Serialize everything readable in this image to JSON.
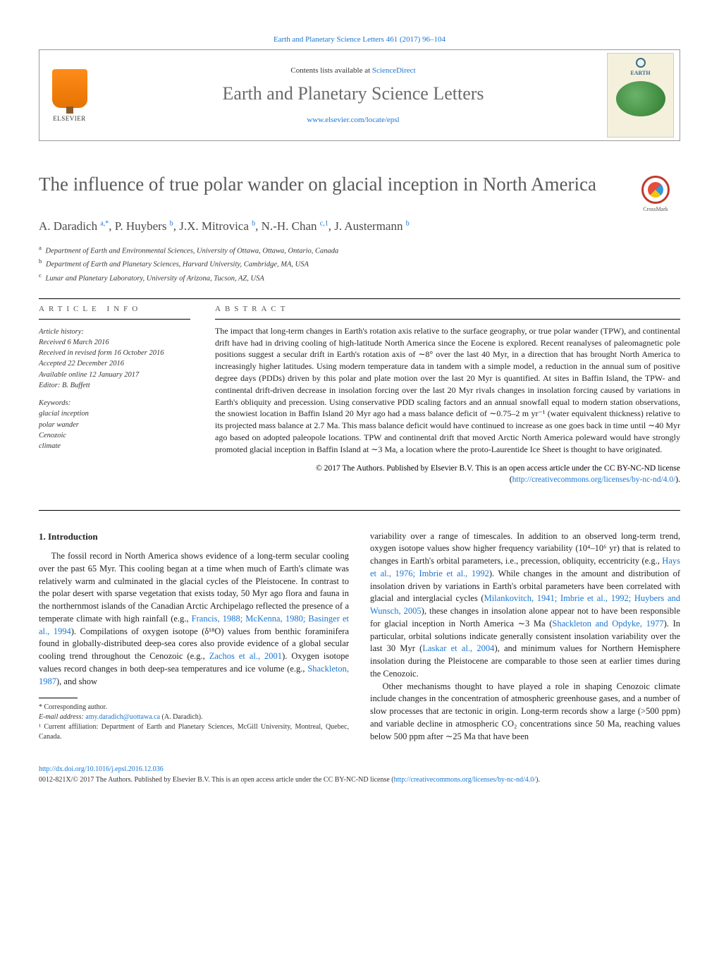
{
  "colors": {
    "link": "#1976d2",
    "title_gray": "#5a5a5a",
    "text": "#222222",
    "elsevier_orange": "#ff8c1a"
  },
  "top_link": "Earth and Planetary Science Letters 461 (2017) 96–104",
  "header": {
    "elsevier_label": "ELSEVIER",
    "contents_prefix": "Contents lists available at ",
    "contents_link": "ScienceDirect",
    "journal_name": "Earth and Planetary Science Letters",
    "journal_site": "www.elsevier.com/locate/epsl",
    "cover_title": "EARTH"
  },
  "crossmark": "CrossMark",
  "article": {
    "title": "The influence of true polar wander on glacial inception in North America",
    "authors_html": "A. Daradich <sup>a,*</sup>, P. Huybers <sup>b</sup>, J.X. Mitrovica <sup>b</sup>, N.-H. Chan <sup>c,1</sup>, J. Austermann <sup>b</sup>",
    "affiliations": [
      "a  Department of Earth and Environmental Sciences, University of Ottawa, Ottawa, Ontario, Canada",
      "b  Department of Earth and Planetary Sciences, Harvard University, Cambridge, MA, USA",
      "c  Lunar and Planetary Laboratory, University of Arizona, Tucson, AZ, USA"
    ]
  },
  "info": {
    "label": "article info",
    "history_heading": "Article history:",
    "history": [
      "Received 6 March 2016",
      "Received in revised form 16 October 2016",
      "Accepted 22 December 2016",
      "Available online 12 January 2017",
      "Editor: B. Buffett"
    ],
    "keywords_heading": "Keywords:",
    "keywords": [
      "glacial inception",
      "polar wander",
      "Cenozoic",
      "climate"
    ]
  },
  "abstract": {
    "label": "abstract",
    "text": "The impact that long-term changes in Earth's rotation axis relative to the surface geography, or true polar wander (TPW), and continental drift have had in driving cooling of high-latitude North America since the Eocene is explored. Recent reanalyses of paleomagnetic pole positions suggest a secular drift in Earth's rotation axis of ∼8° over the last 40 Myr, in a direction that has brought North America to increasingly higher latitudes. Using modern temperature data in tandem with a simple model, a reduction in the annual sum of positive degree days (PDDs) driven by this polar and plate motion over the last 20 Myr is quantified. At sites in Baffin Island, the TPW- and continental drift-driven decrease in insolation forcing over the last 20 Myr rivals changes in insolation forcing caused by variations in Earth's obliquity and precession. Using conservative PDD scaling factors and an annual snowfall equal to modern station observations, the snowiest location in Baffin Island 20 Myr ago had a mass balance deficit of ∼0.75–2 m yr⁻¹ (water equivalent thickness) relative to its projected mass balance at 2.7 Ma. This mass balance deficit would have continued to increase as one goes back in time until ∼40 Myr ago based on adopted paleopole locations. TPW and continental drift that moved Arctic North America poleward would have strongly promoted glacial inception in Baffin Island at ∼3 Ma, a location where the proto-Laurentide Ice Sheet is thought to have originated.",
    "copyright": "© 2017 The Authors. Published by Elsevier B.V. This is an open access article under the CC BY-NC-ND license (",
    "license_url": "http://creativecommons.org/licenses/by-nc-nd/4.0/",
    "copyright_close": ")."
  },
  "body": {
    "section_heading": "1. Introduction",
    "col1": "The fossil record in North America shows evidence of a long-term secular cooling over the past 65 Myr. This cooling began at a time when much of Earth's climate was relatively warm and culminated in the glacial cycles of the Pleistocene. In contrast to the polar desert with sparse vegetation that exists today, 50 Myr ago flora and fauna in the northernmost islands of the Canadian Arctic Archipelago reflected the presence of a temperate climate with high rainfall (e.g., <span class=\"ref-link\">Francis, 1988; McKenna, 1980; Basinger et al., 1994</span>). Compilations of oxygen isotope (δ¹⁸O) values from benthic foraminifera found in globally-distributed deep-sea cores also provide evidence of a global secular cooling trend throughout the Cenozoic (e.g., <span class=\"ref-link\">Zachos et al., 2001</span>). Oxygen isotope values record changes in both deep-sea temperatures and ice volume (e.g., <span class=\"ref-link\">Shackleton, 1987</span>), and show",
    "col2_p1": "variability over a range of timescales. In addition to an observed long-term trend, oxygen isotope values show higher frequency variability (10⁴–10⁶ yr) that is related to changes in Earth's orbital parameters, i.e., precession, obliquity, eccentricity (e.g., <span class=\"ref-link\">Hays et al., 1976; Imbrie et al., 1992</span>). While changes in the amount and distribution of insolation driven by variations in Earth's orbital parameters have been correlated with glacial and interglacial cycles (<span class=\"ref-link\">Milankovitch, 1941; Imbrie et al., 1992; Huybers and Wunsch, 2005</span>), these changes in insolation alone appear not to have been responsible for glacial inception in North America ∼3 Ma (<span class=\"ref-link\">Shackleton and Opdyke, 1977</span>). In particular, orbital solutions indicate generally consistent insolation variability over the last 30 Myr (<span class=\"ref-link\">Laskar et al., 2004</span>), and minimum values for Northern Hemisphere insolation during the Pleistocene are comparable to those seen at earlier times during the Cenozoic.",
    "col2_p2": "Other mechanisms thought to have played a role in shaping Cenozoic climate include changes in the concentration of atmospheric greenhouse gases, and a number of slow processes that are tectonic in origin. Long-term records show a large (>500 ppm) and variable decline in atmospheric CO₂ concentrations since 50 Ma, reaching values below 500 ppm after ∼25 Ma that have been"
  },
  "footnotes": {
    "corr": "* Corresponding author.",
    "email_label": "E-mail address: ",
    "email": "amy.daradich@uottawa.ca",
    "email_name": " (A. Daradich).",
    "note1": "¹ Current affiliation: Department of Earth and Planetary Sciences, McGill University, Montreal, Quebec, Canada."
  },
  "footer": {
    "doi": "http://dx.doi.org/10.1016/j.epsl.2016.12.036",
    "issn_line": "0012-821X/© 2017 The Authors. Published by Elsevier B.V. This is an open access article under the CC BY-NC-ND license (",
    "license_url": "http://creativecommons.org/licenses/by-nc-nd/4.0/",
    "close": ")."
  }
}
